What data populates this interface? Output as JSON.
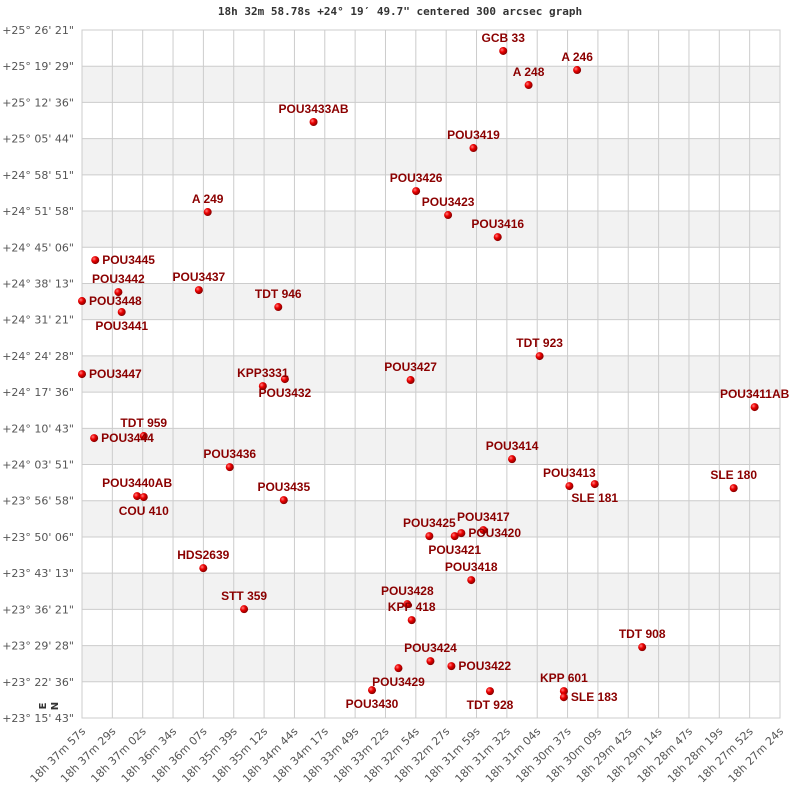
{
  "chart_data": {
    "type": "scatter",
    "title": "18h 32m 58.78s +24° 19′ 49.7\" centered 300 arcsec graph",
    "grid": true,
    "x_axis": {
      "quantity": "right ascension",
      "reversed": true,
      "range": [
        "18h 37m 57s",
        "18h 27m 24s"
      ],
      "tick_labels": [
        "18h 37m 57s",
        "18h 37m 29s",
        "18h 37m 02s",
        "18h 36m 34s",
        "18h 36m 07s",
        "18h 35m 39s",
        "18h 35m 12s",
        "18h 34m 44s",
        "18h 34m 17s",
        "18h 33m 49s",
        "18h 33m 22s",
        "18h 32m 54s",
        "18h 32m 27s",
        "18h 31m 59s",
        "18h 31m 32s",
        "18h 31m 04s",
        "18h 30m 37s",
        "18h 30m 09s",
        "18h 29m 42s",
        "18h 29m 14s",
        "18h 28m 47s",
        "18h 28m 19s",
        "18h 27m 52s",
        "18h 27m 24s"
      ]
    },
    "y_axis": {
      "quantity": "declination",
      "range": [
        "+23° 15' 43\"",
        "+25° 26' 21\""
      ],
      "tick_labels": [
        "+25° 26' 21\"",
        "+25° 19' 29\"",
        "+25° 12' 36\"",
        "+25° 05' 44\"",
        "+24° 58' 51\"",
        "+24° 51' 58\"",
        "+24° 45' 06\"",
        "+24° 38' 13\"",
        "+24° 31' 21\"",
        "+24° 24' 28\"",
        "+24° 17' 36\"",
        "+24° 10' 43\"",
        "+24° 03' 51\"",
        "+23° 56' 58\"",
        "+23° 50' 06\"",
        "+23° 43' 13\"",
        "+23° 36' 21\"",
        "+23° 29' 28\"",
        "+23° 22' 36\"",
        "+23° 15' 43\""
      ]
    },
    "compass": {
      "north": "N",
      "east": "E"
    },
    "colors": {
      "point": "#dd0000",
      "label": "#8b0000",
      "band": "#f2f2f2",
      "grid": "#cccccc"
    },
    "points": [
      {
        "name": "GCB  33",
        "ra": "18h 31m 35s",
        "dec": "+25° 22' 22\""
      },
      {
        "name": "A   246",
        "ra": "18h 30m 28s",
        "dec": "+25° 18' 45\""
      },
      {
        "name": "A   248",
        "ra": "18h 31m 12s",
        "dec": "+25° 15' 54\""
      },
      {
        "name": "POU3433AB",
        "ra": "18h 34m 27s",
        "dec": "+25° 08' 53\""
      },
      {
        "name": "POU3419",
        "ra": "18h 32m 02s",
        "dec": "+25° 03' 56\""
      },
      {
        "name": "POU3426",
        "ra": "18h 32m 54s",
        "dec": "+24° 55' 46\""
      },
      {
        "name": "POU3423",
        "ra": "18h 32m 25s",
        "dec": "+24° 51' 13\""
      },
      {
        "name": "A   249",
        "ra": "18h 36m 03s",
        "dec": "+24° 51' 47\""
      },
      {
        "name": "POU3416",
        "ra": "18h 31m 40s",
        "dec": "+24° 47' 02\""
      },
      {
        "name": "POU3445",
        "ra": "18h 37m 45s",
        "dec": "+24° 42' 40\""
      },
      {
        "name": "POU3442",
        "ra": "18h 37m 24s",
        "dec": "+24° 36' 35\""
      },
      {
        "name": "POU3448",
        "ra": "18h 37m 57s",
        "dec": "+24° 34' 53\""
      },
      {
        "name": "POU3441",
        "ra": "18h 37m 21s",
        "dec": "+24° 32' 48\""
      },
      {
        "name": "POU3437",
        "ra": "18h 36m 11s",
        "dec": "+24° 36' 58\""
      },
      {
        "name": "TDT 946",
        "ra": "18h 34m 59s",
        "dec": "+24° 33' 45\""
      },
      {
        "name": "TDT 923",
        "ra": "18h 31m 02s",
        "dec": "+24° 24' 26\""
      },
      {
        "name": "POU3447",
        "ra": "18h 37m 57s",
        "dec": "+24° 21' 01\""
      },
      {
        "name": "KPP3331",
        "ra": "18h 35m 13s",
        "dec": "+24° 18' 44\""
      },
      {
        "name": "POU3432",
        "ra": "18h 34m 53s",
        "dec": "+24° 20' 04\""
      },
      {
        "name": "POU3427",
        "ra": "18h 32m 59s",
        "dec": "+24° 19' 53\""
      },
      {
        "name": "POU3411AB",
        "ra": "18h 27m 47s",
        "dec": "+24° 14' 45\""
      },
      {
        "name": "POU3444",
        "ra": "18h 37m 46s",
        "dec": "+24° 08' 52\""
      },
      {
        "name": "TDT 959",
        "ra": "18h 37m 01s",
        "dec": "+24° 09' 15\""
      },
      {
        "name": "POU3436",
        "ra": "18h 35m 43s",
        "dec": "+24° 03' 21\""
      },
      {
        "name": "POU3414",
        "ra": "18h 31m 27s",
        "dec": "+24° 04' 52\""
      },
      {
        "name": "POU3413",
        "ra": "18h 30m 35s",
        "dec": "+23° 59' 45\""
      },
      {
        "name": "SLE 181",
        "ra": "18h 30m 12s",
        "dec": "+24° 00' 08\""
      },
      {
        "name": "SLE 180",
        "ra": "18h 28m 06s",
        "dec": "+23° 59' 22\""
      },
      {
        "name": "POU3440AB",
        "ra": "18h 37m 07s",
        "dec": "+23° 57' 51\""
      },
      {
        "name": "COU 410",
        "ra": "18h 37m 01s",
        "dec": "+23° 57' 40\""
      },
      {
        "name": "POU3435",
        "ra": "18h 34m 54s",
        "dec": "+23° 57' 05\""
      },
      {
        "name": "POU3425",
        "ra": "18h 32m 42s",
        "dec": "+23° 50' 15\""
      },
      {
        "name": "POU3421",
        "ra": "18h 32m 19s",
        "dec": "+23° 50' 15\""
      },
      {
        "name": "POU3420",
        "ra": "18h 32m 13s",
        "dec": "+23° 50' 49\""
      },
      {
        "name": "POU3417",
        "ra": "18h 31m 53s",
        "dec": "+23° 51' 24\""
      },
      {
        "name": "HDS2639",
        "ra": "18h 36m 07s",
        "dec": "+23° 44' 10\""
      },
      {
        "name": "POU3418",
        "ra": "18h 32m 04s",
        "dec": "+23° 41' 54\""
      },
      {
        "name": "STT 359",
        "ra": "18h 35m 30s",
        "dec": "+23° 36' 23\""
      },
      {
        "name": "POU3428",
        "ra": "18h 33m 02s",
        "dec": "+23° 37' 20\""
      },
      {
        "name": "KPP 418",
        "ra": "18h 32m 58s",
        "dec": "+23° 34' 18\""
      },
      {
        "name": "TDT 908",
        "ra": "18h 29m 29s",
        "dec": "+23° 29' 10\""
      },
      {
        "name": "POU3424",
        "ra": "18h 32m 41s",
        "dec": "+23° 26' 31\""
      },
      {
        "name": "POU3429",
        "ra": "18h 33m 10s",
        "dec": "+23° 25' 11\""
      },
      {
        "name": "POU3422",
        "ra": "18h 32m 22s",
        "dec": "+23° 25' 34\""
      },
      {
        "name": "POU3430",
        "ra": "18h 33m 34s",
        "dec": "+23° 21' 00\""
      },
      {
        "name": "TDT 928",
        "ra": "18h 31m 47s",
        "dec": "+23° 20' 49\""
      },
      {
        "name": "KPP 601",
        "ra": "18h 30m 40s",
        "dec": "+23° 20' 49\""
      },
      {
        "name": "SLE 183",
        "ra": "18h 30m 40s",
        "dec": "+23° 19' 40\""
      }
    ]
  }
}
